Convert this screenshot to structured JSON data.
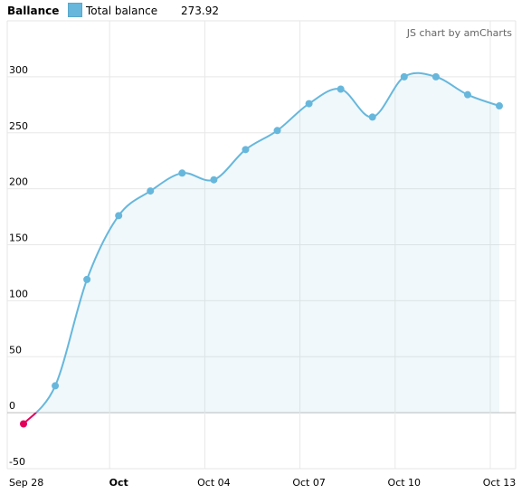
{
  "legend": {
    "series_title": "Ballance",
    "entry_label": "Total balance",
    "entry_value": "273.92",
    "entry_color": "#67b7dc"
  },
  "credit": "JS chart by amCharts",
  "chart_data": {
    "type": "area",
    "series": [
      {
        "name": "Total balance",
        "color": "#67b7dc",
        "negative_color": "#e4005a",
        "points": [
          {
            "x": "2015-09-28",
            "y": -10
          },
          {
            "x": "2015-09-29",
            "y": 24
          },
          {
            "x": "2015-09-30",
            "y": 119
          },
          {
            "x": "2015-10-01",
            "y": 176
          },
          {
            "x": "2015-10-02",
            "y": 198
          },
          {
            "x": "2015-10-03",
            "y": 214
          },
          {
            "x": "2015-10-04",
            "y": 208
          },
          {
            "x": "2015-10-05",
            "y": 235
          },
          {
            "x": "2015-10-06",
            "y": 252
          },
          {
            "x": "2015-10-07",
            "y": 276
          },
          {
            "x": "2015-10-08",
            "y": 289
          },
          {
            "x": "2015-10-09",
            "y": 264
          },
          {
            "x": "2015-10-10",
            "y": 300
          },
          {
            "x": "2015-10-11",
            "y": 300
          },
          {
            "x": "2015-10-12",
            "y": 284
          },
          {
            "x": "2015-10-13",
            "y": 274
          }
        ]
      }
    ],
    "ylim": [
      -50,
      350
    ],
    "y_ticks": [
      -50,
      0,
      50,
      100,
      150,
      200,
      250,
      300
    ],
    "x_ticks": [
      {
        "date": "2015-09-28",
        "label": "Sep 28",
        "bold": false
      },
      {
        "date": "2015-10-01",
        "label": "Oct",
        "bold": true
      },
      {
        "date": "2015-10-04",
        "label": "Oct 04",
        "bold": false
      },
      {
        "date": "2015-10-07",
        "label": "Oct 07",
        "bold": false
      },
      {
        "date": "2015-10-10",
        "label": "Oct 10",
        "bold": false
      },
      {
        "date": "2015-10-13",
        "label": "Oct 13",
        "bold": false
      }
    ],
    "grid": true
  }
}
